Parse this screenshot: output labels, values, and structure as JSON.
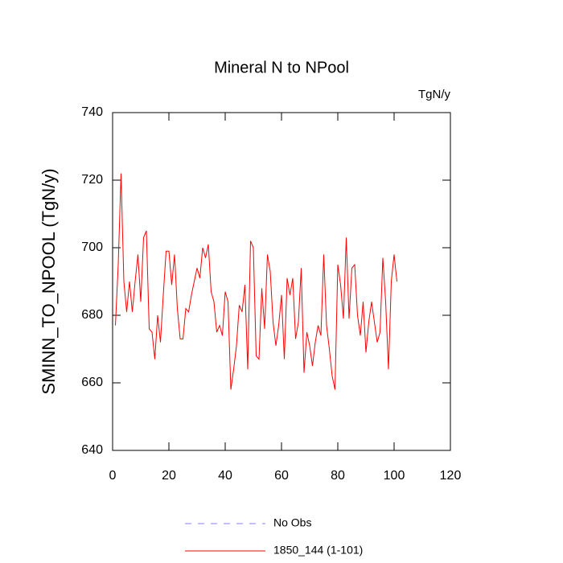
{
  "chart_data": {
    "type": "line",
    "title": "Mineral N to NPool",
    "units": "TgN/y",
    "y_label": "SMINN_TO_NPOOL  (TgN/y)",
    "x": [
      1,
      2,
      3,
      4,
      5,
      6,
      7,
      8,
      9,
      10,
      11,
      12,
      13,
      14,
      15,
      16,
      17,
      18,
      19,
      20,
      21,
      22,
      23,
      24,
      25,
      26,
      27,
      28,
      29,
      30,
      31,
      32,
      33,
      34,
      35,
      36,
      37,
      38,
      39,
      40,
      41,
      42,
      43,
      44,
      45,
      46,
      47,
      48,
      49,
      50,
      51,
      52,
      53,
      54,
      55,
      56,
      57,
      58,
      59,
      60,
      61,
      62,
      63,
      64,
      65,
      66,
      67,
      68,
      69,
      70,
      71,
      72,
      73,
      74,
      75,
      76,
      77,
      78,
      79,
      80,
      81,
      82,
      83,
      84,
      85,
      86,
      87,
      88,
      89,
      90,
      91,
      92,
      93,
      94,
      95,
      96,
      97,
      98,
      99,
      100,
      101
    ],
    "series": [
      {
        "name": "1850_144 (1-101)",
        "color": "#ff0000",
        "values": [
          677,
          695,
          722,
          690,
          681,
          690,
          681,
          690,
          698,
          684,
          703,
          705,
          676,
          675,
          667,
          680,
          672,
          686,
          699,
          699,
          689,
          698,
          682,
          673,
          673,
          682,
          681,
          686,
          690,
          694,
          691,
          700,
          697,
          701,
          687,
          684,
          675,
          677,
          674,
          687,
          684,
          658,
          664,
          671,
          683,
          681,
          689,
          664,
          702,
          700,
          668,
          667,
          688,
          676,
          698,
          693,
          678,
          671,
          677,
          686,
          667,
          691,
          686,
          691,
          673,
          678,
          694,
          663,
          675,
          671,
          665,
          672,
          677,
          674,
          698,
          677,
          670,
          662,
          658,
          695,
          689,
          679,
          703,
          679,
          694,
          695,
          680,
          674,
          684,
          669,
          678,
          684,
          678,
          672,
          675,
          697,
          684,
          664,
          690,
          698,
          690
        ]
      }
    ],
    "extra_legend": {
      "name": "No Obs",
      "color": "#8080ff",
      "dashed": true
    },
    "xlim": [
      0,
      120
    ],
    "xticks": [
      0,
      20,
      40,
      60,
      80,
      100,
      120
    ],
    "ylim": [
      640,
      740
    ],
    "yticks": [
      640,
      660,
      680,
      700,
      720,
      740
    ],
    "grid": false
  }
}
